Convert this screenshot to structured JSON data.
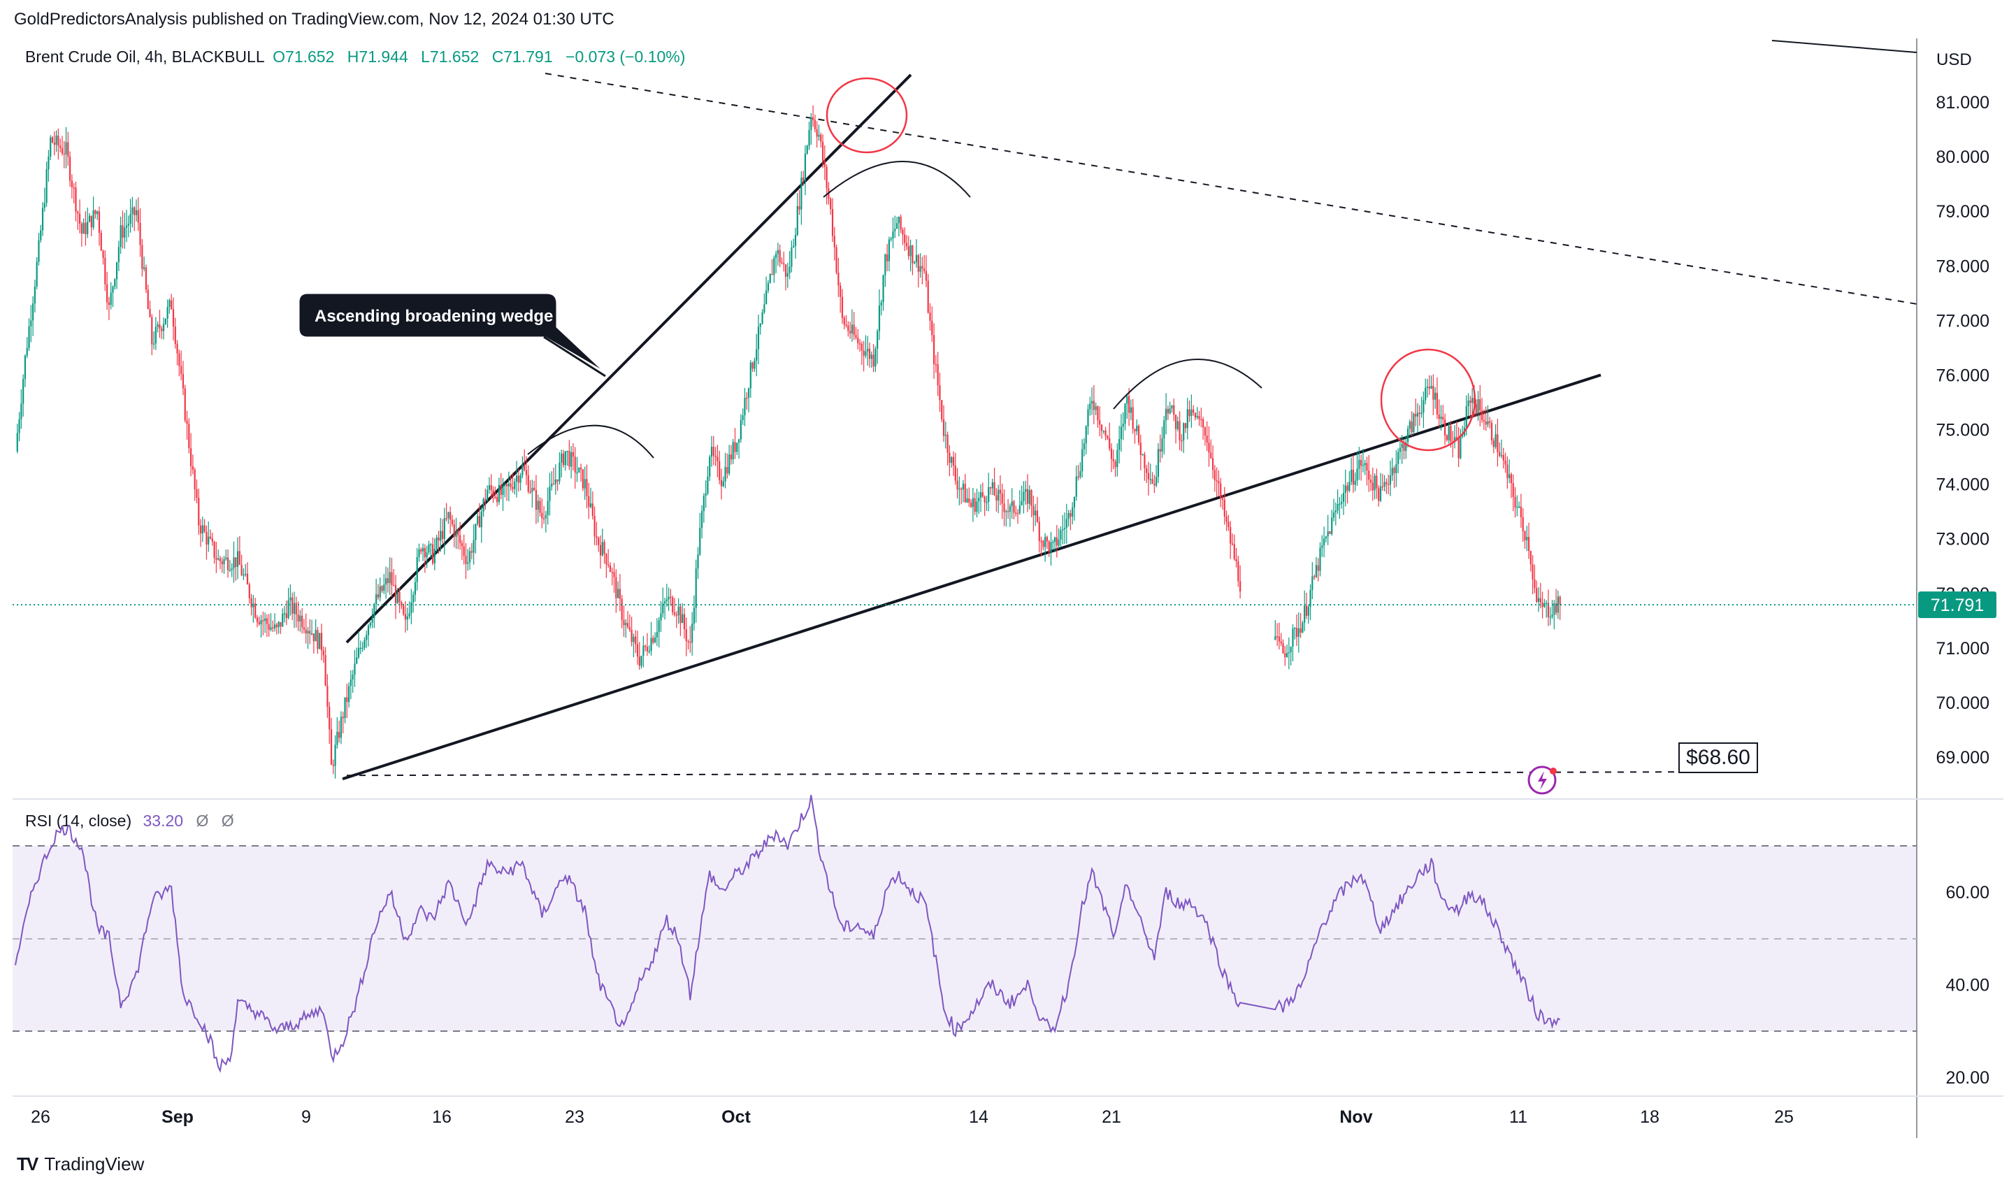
{
  "header": {
    "publisher": "GoldPredictorsAnalysis published on TradingView.com, Nov 12, 2024 01:30 UTC"
  },
  "legend": {
    "title": "Brent Crude Oil, 4h, BLACKBULL",
    "open": "O71.652",
    "high": "H71.944",
    "low": "L71.652",
    "close": "C71.791",
    "change": "−0.073 (−0.10%)"
  },
  "price_axis": {
    "currency": "USD",
    "last_price_label": "71.791",
    "colors": {
      "up": "#089981",
      "down": "#f23645",
      "last_price": "#089981"
    }
  },
  "annotations": {
    "wedge_label": "Ascending broadening wedge",
    "target_label": "$68.60"
  },
  "rsi": {
    "label": "RSI (14, close)",
    "value": "33.20",
    "na1": "Ø",
    "na2": "Ø"
  },
  "footer": {
    "brand": "TradingView",
    "logo": "TV"
  },
  "chart_data": [
    {
      "type": "candlestick",
      "title": "Brent Crude Oil, 4h, BLACKBULL",
      "timeframe": "4h",
      "ylim": [
        68.3,
        82.3
      ],
      "y_ticks": [
        "69.000",
        "70.000",
        "71.000",
        "72.000",
        "73.000",
        "74.000",
        "75.000",
        "76.000",
        "77.000",
        "78.000",
        "79.000",
        "80.000",
        "81.000"
      ],
      "x_ticks": [
        "26",
        "Sep",
        "9",
        "16",
        "23",
        "Oct",
        "14",
        "21",
        "Nov",
        "11",
        "18",
        "25"
      ],
      "path_points": [
        [
          0,
          74.6
        ],
        [
          5,
          76.3
        ],
        [
          12,
          78.3
        ],
        [
          18,
          80.3
        ],
        [
          26,
          80.1
        ],
        [
          34,
          78.6
        ],
        [
          42,
          79.0
        ],
        [
          48,
          77.2
        ],
        [
          54,
          78.6
        ],
        [
          62,
          79.0
        ],
        [
          70,
          76.6
        ],
        [
          80,
          77.3
        ],
        [
          86,
          75.6
        ],
        [
          94,
          73.3
        ],
        [
          104,
          72.6
        ],
        [
          114,
          72.6
        ],
        [
          124,
          71.6
        ],
        [
          134,
          71.3
        ],
        [
          140,
          71.8
        ],
        [
          150,
          71.4
        ],
        [
          158,
          71.0
        ],
        [
          162,
          68.8
        ],
        [
          168,
          69.8
        ],
        [
          176,
          70.9
        ],
        [
          184,
          71.8
        ],
        [
          192,
          72.3
        ],
        [
          200,
          71.4
        ],
        [
          208,
          72.9
        ],
        [
          214,
          72.7
        ],
        [
          222,
          73.4
        ],
        [
          232,
          72.6
        ],
        [
          242,
          73.9
        ],
        [
          250,
          73.8
        ],
        [
          260,
          74.3
        ],
        [
          270,
          73.4
        ],
        [
          282,
          74.6
        ],
        [
          292,
          74.0
        ],
        [
          298,
          73.0
        ],
        [
          304,
          72.6
        ],
        [
          312,
          71.5
        ],
        [
          320,
          70.8
        ],
        [
          328,
          71.3
        ],
        [
          334,
          71.9
        ],
        [
          340,
          71.7
        ],
        [
          346,
          71.0
        ],
        [
          350,
          72.8
        ],
        [
          356,
          74.6
        ],
        [
          362,
          74.1
        ],
        [
          370,
          74.8
        ],
        [
          376,
          75.9
        ],
        [
          384,
          77.2
        ],
        [
          390,
          78.3
        ],
        [
          396,
          77.8
        ],
        [
          402,
          79.2
        ],
        [
          408,
          80.8
        ],
        [
          412,
          80.4
        ],
        [
          418,
          79.0
        ],
        [
          424,
          77.0
        ],
        [
          432,
          76.6
        ],
        [
          440,
          76.3
        ],
        [
          446,
          78.1
        ],
        [
          452,
          78.8
        ],
        [
          460,
          78.2
        ],
        [
          466,
          77.9
        ],
        [
          470,
          76.6
        ],
        [
          476,
          75.0
        ],
        [
          482,
          74.1
        ],
        [
          490,
          73.6
        ],
        [
          500,
          73.9
        ],
        [
          510,
          73.5
        ],
        [
          520,
          73.8
        ],
        [
          526,
          73.0
        ],
        [
          532,
          72.8
        ],
        [
          540,
          73.4
        ],
        [
          546,
          74.4
        ],
        [
          552,
          75.6
        ],
        [
          558,
          75.0
        ],
        [
          564,
          74.3
        ],
        [
          570,
          75.6
        ],
        [
          578,
          74.5
        ],
        [
          584,
          74.0
        ],
        [
          590,
          75.5
        ],
        [
          598,
          74.9
        ],
        [
          602,
          75.3
        ],
        [
          610,
          75.0
        ],
        [
          620,
          73.4
        ],
        [
          630,
          71.9
        ],
        [
          640,
          71.4
        ],
        [
          650,
          70.9
        ],
        [
          660,
          71.5
        ],
        [
          670,
          72.8
        ],
        [
          680,
          73.8
        ],
        [
          690,
          74.4
        ],
        [
          700,
          73.8
        ],
        [
          710,
          74.6
        ],
        [
          720,
          75.4
        ],
        [
          726,
          75.8
        ],
        [
          732,
          75.1
        ],
        [
          740,
          74.6
        ],
        [
          746,
          75.6
        ],
        [
          752,
          75.3
        ],
        [
          760,
          74.7
        ],
        [
          768,
          73.8
        ],
        [
          776,
          72.9
        ],
        [
          780,
          71.8
        ],
        [
          786,
          71.7
        ],
        [
          792,
          71.79
        ]
      ],
      "wedge_upper_line": [
        [
          "Sep 10",
          71.1
        ],
        [
          "Oct 8",
          81.5
        ]
      ],
      "wedge_lower_line": [
        [
          "Sep 10",
          68.6
        ],
        [
          "Nov 15",
          76.0
        ]
      ],
      "upper_trendline_dashed": [
        [
          "Sep 1",
          83.5
        ],
        [
          "Nov 29",
          77.3
        ]
      ],
      "target_level": 68.6,
      "last_price": 71.791
    },
    {
      "type": "line",
      "title": "RSI (14, close)",
      "ylim": [
        17,
        80
      ],
      "y_ticks": [
        "20.00",
        "40.00",
        "60.00"
      ],
      "bands": [
        30,
        50,
        70
      ],
      "last_value": 33.2,
      "path_points": [
        [
          0,
          45
        ],
        [
          10,
          62
        ],
        [
          20,
          72
        ],
        [
          26,
          74
        ],
        [
          34,
          70
        ],
        [
          42,
          52
        ],
        [
          48,
          50
        ],
        [
          54,
          36
        ],
        [
          62,
          42
        ],
        [
          70,
          58
        ],
        [
          80,
          61
        ],
        [
          86,
          38
        ],
        [
          94,
          33
        ],
        [
          100,
          28
        ],
        [
          104,
          22
        ],
        [
          110,
          24
        ],
        [
          114,
          36
        ],
        [
          124,
          34
        ],
        [
          134,
          30
        ],
        [
          140,
          31
        ],
        [
          150,
          33
        ],
        [
          158,
          35
        ],
        [
          162,
          24
        ],
        [
          168,
          28
        ],
        [
          176,
          38
        ],
        [
          184,
          52
        ],
        [
          192,
          60
        ],
        [
          200,
          50
        ],
        [
          208,
          56
        ],
        [
          214,
          54
        ],
        [
          222,
          62
        ],
        [
          232,
          53
        ],
        [
          242,
          66
        ],
        [
          250,
          64
        ],
        [
          260,
          66
        ],
        [
          270,
          55
        ],
        [
          282,
          64
        ],
        [
          292,
          56
        ],
        [
          298,
          42
        ],
        [
          304,
          36
        ],
        [
          312,
          30
        ],
        [
          320,
          40
        ],
        [
          328,
          47
        ],
        [
          334,
          54
        ],
        [
          340,
          50
        ],
        [
          346,
          38
        ],
        [
          350,
          49
        ],
        [
          356,
          64
        ],
        [
          362,
          60
        ],
        [
          370,
          64
        ],
        [
          376,
          66
        ],
        [
          384,
          70
        ],
        [
          390,
          73
        ],
        [
          396,
          70
        ],
        [
          402,
          75
        ],
        [
          408,
          80
        ],
        [
          412,
          70
        ],
        [
          418,
          60
        ],
        [
          424,
          52
        ],
        [
          432,
          53
        ],
        [
          440,
          50
        ],
        [
          446,
          60
        ],
        [
          452,
          64
        ],
        [
          460,
          60
        ],
        [
          466,
          58
        ],
        [
          470,
          50
        ],
        [
          476,
          35
        ],
        [
          482,
          30
        ],
        [
          490,
          34
        ],
        [
          500,
          40
        ],
        [
          510,
          36
        ],
        [
          520,
          40
        ],
        [
          526,
          32
        ],
        [
          532,
          30
        ],
        [
          540,
          40
        ],
        [
          546,
          55
        ],
        [
          552,
          64
        ],
        [
          558,
          57
        ],
        [
          564,
          50
        ],
        [
          570,
          62
        ],
        [
          578,
          52
        ],
        [
          584,
          46
        ],
        [
          590,
          60
        ],
        [
          598,
          57
        ],
        [
          602,
          58
        ],
        [
          610,
          54
        ],
        [
          620,
          42
        ],
        [
          630,
          34
        ],
        [
          640,
          36
        ],
        [
          650,
          35
        ],
        [
          660,
          40
        ],
        [
          670,
          53
        ],
        [
          680,
          60
        ],
        [
          690,
          64
        ],
        [
          700,
          52
        ],
        [
          710,
          58
        ],
        [
          720,
          64
        ],
        [
          726,
          66
        ],
        [
          732,
          58
        ],
        [
          740,
          56
        ],
        [
          746,
          60
        ],
        [
          752,
          58
        ],
        [
          760,
          52
        ],
        [
          768,
          45
        ],
        [
          776,
          38
        ],
        [
          780,
          34
        ],
        [
          786,
          32
        ],
        [
          792,
          33.2
        ]
      ]
    }
  ]
}
